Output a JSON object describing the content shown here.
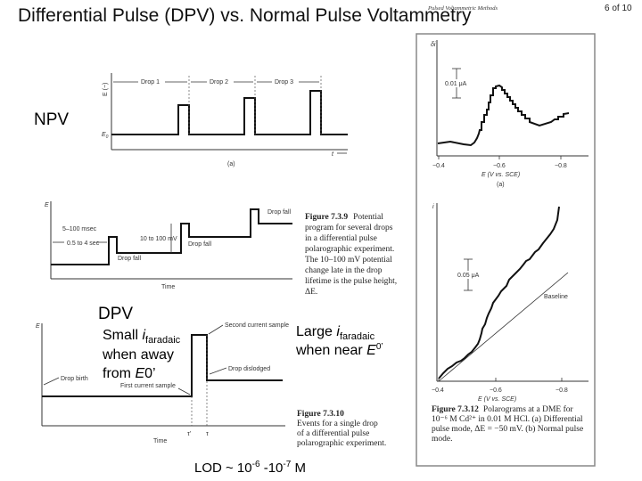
{
  "slide": {
    "title": "Differential Pulse (DPV) vs. Normal Pulse Voltammetry",
    "running_header": "Pulsed Voltammetric Methods",
    "page": "6 of 10",
    "npv_label": "NPV",
    "dpv_label": "DPV",
    "lod": {
      "prefix": "LOD ~ 10",
      "exp1": "-6",
      "mid": " -10",
      "exp2": "-7",
      "suffix": " M"
    }
  },
  "npv_figure": {
    "y_label": "E (−)",
    "e0_label": "E",
    "e0_sub": "0",
    "drops": [
      "Drop 1",
      "Drop 2",
      "Drop 3"
    ],
    "x_label": "t",
    "panel": "(a)"
  },
  "figure_739": {
    "y_label": "E",
    "x_label": "Time",
    "labels": {
      "pulse_width": "5–100 msec",
      "drop_time": "0.5 to 4 sec",
      "pulse_height": "10 to 100 mV",
      "drop_fall": "Drop fall"
    },
    "caption_title": "Figure 7.3.9",
    "caption_lines": [
      "Potential",
      "program for several drops",
      "in a differential pulse",
      "polarographic experiment.",
      "The 10–100 mV potential",
      "change late in the drop",
      "lifetime is the pulse height,",
      "ΔE."
    ]
  },
  "figure_7310": {
    "y_label": "E",
    "x_label": "Time",
    "tau_prime": "τ'",
    "tau": "τ",
    "labels": {
      "drop_birth": "Drop birth",
      "first_sample": "First current sample",
      "second_sample": "Second current sample",
      "drop_dislodged": "Drop dislodged"
    },
    "caption_title": "Figure 7.3.10",
    "caption_lines": [
      "Events for a single drop",
      "of a differential pulse",
      "polarographic experiment."
    ]
  },
  "annotations": {
    "small": {
      "pre": "Small ",
      "i": "i",
      "sub": "faradaic",
      "line2": "when away",
      "line3_pre": "from ",
      "line3_e": "E",
      "line3_post": "0’"
    },
    "large": {
      "pre": "Large ",
      "i": "i",
      "sub": "faradaic",
      "line2_pre": "when near ",
      "line2_e": "E",
      "line2_sup": "0’"
    }
  },
  "figure_7312": {
    "top": {
      "y_label": "δi",
      "scale": "0.01 μA",
      "ticks": [
        "−0.4",
        "−0.6",
        "−0.8"
      ],
      "x_label": "E (V vs. SCE)",
      "panel": "(a)"
    },
    "bottom": {
      "y_label": "i",
      "scale": "0.05 μA",
      "baseline": "Baseline",
      "ticks": [
        "−0.4",
        "−0.6",
        "−0.8"
      ],
      "x_label": "E (V vs. SCE)"
    },
    "caption_title": "Figure 7.3.12",
    "caption_lines": [
      "Polarograms at a DME for",
      "10⁻⁶ M Cd²⁺ in 0.01 M HCl. (a) Differential",
      "pulse mode, ΔE = −50 mV. (b) Normal pulse",
      "mode."
    ]
  }
}
